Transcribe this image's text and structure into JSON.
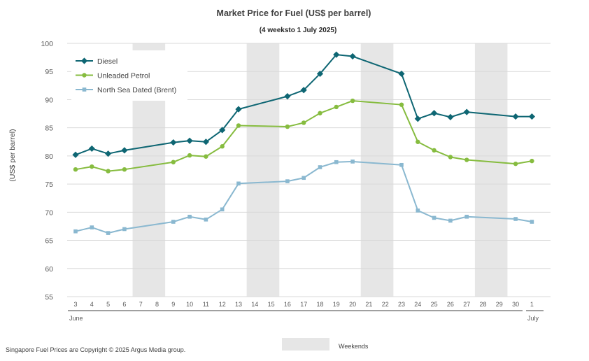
{
  "chart_data": {
    "type": "line",
    "title": "Market Price for Fuel (US$ per barrel)",
    "subtitle": "(4 weeksto 1 July 2025)",
    "ylabel": "(US$ per barrel)",
    "xlabel": "",
    "ylim": [
      55,
      100
    ],
    "yticks": [
      55,
      60,
      65,
      70,
      75,
      80,
      85,
      90,
      95,
      100
    ],
    "grid": true,
    "legend_position": "top-left",
    "categories": [
      "3",
      "4",
      "5",
      "6",
      "7",
      "8",
      "9",
      "10",
      "11",
      "12",
      "13",
      "14",
      "15",
      "16",
      "17",
      "18",
      "19",
      "20",
      "21",
      "22",
      "23",
      "24",
      "25",
      "26",
      "27",
      "28",
      "29",
      "30",
      "1"
    ],
    "month_labels": [
      {
        "label": "June",
        "category": "3"
      },
      {
        "label": "July",
        "category": "1"
      }
    ],
    "weekend_ranges": [
      [
        "7",
        "8"
      ],
      [
        "14",
        "15"
      ],
      [
        "21",
        "22"
      ],
      [
        "28",
        "29"
      ]
    ],
    "weekend_color": "#e6e6e6",
    "weekend_legend": "Weekends",
    "series": [
      {
        "name": "Diesel",
        "color": "#0e6673",
        "marker": "diamond",
        "points": [
          [
            "3",
            80.2
          ],
          [
            "4",
            81.3
          ],
          [
            "5",
            80.4
          ],
          [
            "6",
            81.0
          ],
          [
            "9",
            82.4
          ],
          [
            "10",
            82.7
          ],
          [
            "11",
            82.5
          ],
          [
            "12",
            84.6
          ],
          [
            "13",
            88.3
          ],
          [
            "16",
            90.6
          ],
          [
            "17",
            91.7
          ],
          [
            "18",
            94.6
          ],
          [
            "19",
            98.0
          ],
          [
            "20",
            97.7
          ],
          [
            "23",
            94.6
          ],
          [
            "24",
            86.6
          ],
          [
            "25",
            87.6
          ],
          [
            "26",
            86.9
          ],
          [
            "27",
            87.8
          ],
          [
            "30",
            87.0
          ],
          [
            "1",
            87.0
          ]
        ]
      },
      {
        "name": "Unleaded Petrol",
        "color": "#86bc3f",
        "marker": "circle",
        "points": [
          [
            "3",
            77.6
          ],
          [
            "4",
            78.1
          ],
          [
            "5",
            77.3
          ],
          [
            "6",
            77.6
          ],
          [
            "9",
            78.9
          ],
          [
            "10",
            80.1
          ],
          [
            "11",
            79.9
          ],
          [
            "12",
            81.7
          ],
          [
            "13",
            85.4
          ],
          [
            "16",
            85.2
          ],
          [
            "17",
            85.9
          ],
          [
            "18",
            87.6
          ],
          [
            "19",
            88.7
          ],
          [
            "20",
            89.8
          ],
          [
            "23",
            89.1
          ],
          [
            "24",
            82.5
          ],
          [
            "25",
            81.0
          ],
          [
            "26",
            79.8
          ],
          [
            "27",
            79.3
          ],
          [
            "30",
            78.6
          ],
          [
            "1",
            79.1
          ]
        ]
      },
      {
        "name": "North Sea Dated (Brent)",
        "color": "#8ab8d0",
        "marker": "square",
        "points": [
          [
            "3",
            66.6
          ],
          [
            "4",
            67.3
          ],
          [
            "5",
            66.3
          ],
          [
            "6",
            67.0
          ],
          [
            "9",
            68.3
          ],
          [
            "10",
            69.2
          ],
          [
            "11",
            68.7
          ],
          [
            "12",
            70.5
          ],
          [
            "13",
            75.1
          ],
          [
            "16",
            75.5
          ],
          [
            "17",
            76.1
          ],
          [
            "18",
            78.0
          ],
          [
            "19",
            78.9
          ],
          [
            "20",
            79.0
          ],
          [
            "23",
            78.4
          ],
          [
            "24",
            70.3
          ],
          [
            "25",
            69.0
          ],
          [
            "26",
            68.5
          ],
          [
            "27",
            69.2
          ],
          [
            "30",
            68.8
          ],
          [
            "1",
            68.3
          ]
        ]
      }
    ]
  },
  "footer": {
    "copyright": "Singapore Fuel Prices are Copyright © 2025 Argus Media group."
  }
}
